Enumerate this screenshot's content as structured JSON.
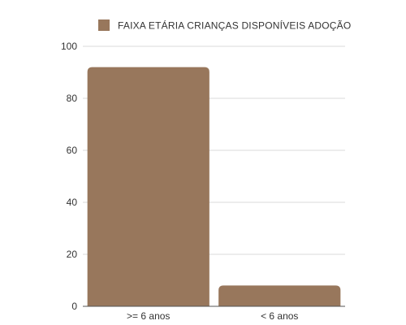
{
  "chart_data": {
    "type": "bar",
    "categories": [
      ">= 6 anos",
      "< 6 anos"
    ],
    "series": [
      {
        "name": "FAIXA ETÁRIA CRIANÇAS DISPONÍVEIS ADOÇÃO",
        "values": [
          92,
          8
        ]
      }
    ],
    "ylim": [
      0,
      100
    ],
    "yticks": [
      "0",
      "20",
      "40",
      "60",
      "80",
      "100"
    ],
    "grid": true,
    "legend_position": "top-center",
    "colors": {
      "bar": "#98775c",
      "grid": "#d9d9d9",
      "axis": "#555555"
    }
  }
}
